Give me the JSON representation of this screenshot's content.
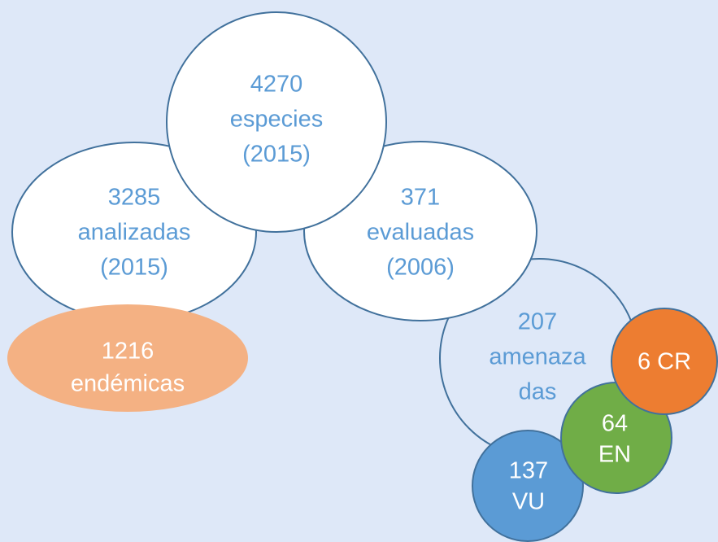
{
  "nodes": [
    {
      "lines": [
        "3285",
        "analizadas",
        "(2015)"
      ]
    },
    {
      "lines": [
        "371",
        "evaluadas",
        "(2006)"
      ]
    },
    {
      "lines": [
        "4270",
        "especies",
        "(2015)"
      ]
    },
    {
      "lines": [
        "1216",
        "endémicas"
      ]
    },
    {
      "lines": [
        "207",
        "amenaza",
        "das"
      ]
    },
    {
      "lines": [
        "137",
        "VU"
      ]
    },
    {
      "lines": [
        "64",
        "EN"
      ]
    },
    {
      "lines": [
        "6 CR"
      ]
    }
  ]
}
